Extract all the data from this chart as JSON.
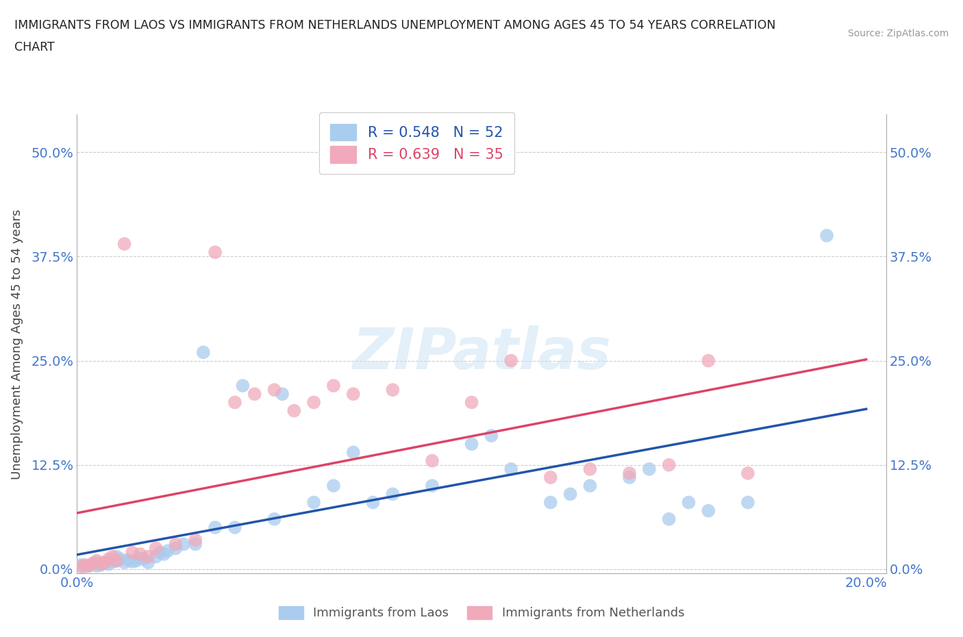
{
  "title_line1": "IMMIGRANTS FROM LAOS VS IMMIGRANTS FROM NETHERLANDS UNEMPLOYMENT AMONG AGES 45 TO 54 YEARS CORRELATION",
  "title_line2": "CHART",
  "source": "Source: ZipAtlas.com",
  "ylabel": "Unemployment Among Ages 45 to 54 years",
  "xlim": [
    0.0,
    0.205
  ],
  "ylim": [
    -0.005,
    0.545
  ],
  "yticks": [
    0.0,
    0.125,
    0.25,
    0.375,
    0.5
  ],
  "ytick_labels": [
    "0.0%",
    "12.5%",
    "25.0%",
    "37.5%",
    "50.0%"
  ],
  "xticks": [
    0.0,
    0.05,
    0.1,
    0.15,
    0.2
  ],
  "xtick_labels": [
    "0.0%",
    "",
    "",
    "",
    "20.0%"
  ],
  "R_laos": 0.548,
  "N_laos": 52,
  "R_netherlands": 0.639,
  "N_netherlands": 35,
  "color_laos": "#aaccee",
  "color_netherlands": "#f0aabb",
  "line_color_laos": "#2255aa",
  "line_color_netherlands": "#dd4466",
  "legend_label_laos": "Immigrants from Laos",
  "legend_label_netherlands": "Immigrants from Netherlands",
  "background_color": "#ffffff",
  "laos_x": [
    0.001,
    0.002,
    0.003,
    0.004,
    0.005,
    0.005,
    0.006,
    0.007,
    0.008,
    0.009,
    0.01,
    0.01,
    0.011,
    0.012,
    0.013,
    0.014,
    0.015,
    0.016,
    0.017,
    0.018,
    0.02,
    0.021,
    0.022,
    0.023,
    0.025,
    0.027,
    0.03,
    0.032,
    0.035,
    0.04,
    0.042,
    0.05,
    0.052,
    0.06,
    0.065,
    0.07,
    0.075,
    0.08,
    0.09,
    0.1,
    0.105,
    0.11,
    0.12,
    0.125,
    0.13,
    0.14,
    0.145,
    0.15,
    0.155,
    0.16,
    0.17,
    0.19
  ],
  "laos_y": [
    0.005,
    0.003,
    0.004,
    0.006,
    0.004,
    0.008,
    0.005,
    0.007,
    0.006,
    0.009,
    0.01,
    0.015,
    0.012,
    0.008,
    0.011,
    0.009,
    0.01,
    0.013,
    0.012,
    0.008,
    0.015,
    0.02,
    0.018,
    0.022,
    0.025,
    0.03,
    0.03,
    0.26,
    0.05,
    0.05,
    0.22,
    0.06,
    0.21,
    0.08,
    0.1,
    0.14,
    0.08,
    0.09,
    0.1,
    0.15,
    0.16,
    0.12,
    0.08,
    0.09,
    0.1,
    0.11,
    0.12,
    0.06,
    0.08,
    0.07,
    0.08,
    0.4
  ],
  "netherlands_x": [
    0.001,
    0.002,
    0.003,
    0.004,
    0.005,
    0.006,
    0.007,
    0.008,
    0.009,
    0.01,
    0.012,
    0.014,
    0.016,
    0.018,
    0.02,
    0.025,
    0.03,
    0.035,
    0.04,
    0.045,
    0.05,
    0.055,
    0.06,
    0.065,
    0.07,
    0.08,
    0.09,
    0.1,
    0.11,
    0.12,
    0.13,
    0.14,
    0.15,
    0.16,
    0.17
  ],
  "netherlands_y": [
    0.003,
    0.005,
    0.004,
    0.007,
    0.01,
    0.006,
    0.008,
    0.012,
    0.015,
    0.01,
    0.39,
    0.02,
    0.018,
    0.015,
    0.025,
    0.03,
    0.035,
    0.38,
    0.2,
    0.21,
    0.215,
    0.19,
    0.2,
    0.22,
    0.21,
    0.215,
    0.13,
    0.2,
    0.25,
    0.11,
    0.12,
    0.115,
    0.125,
    0.25,
    0.115
  ]
}
